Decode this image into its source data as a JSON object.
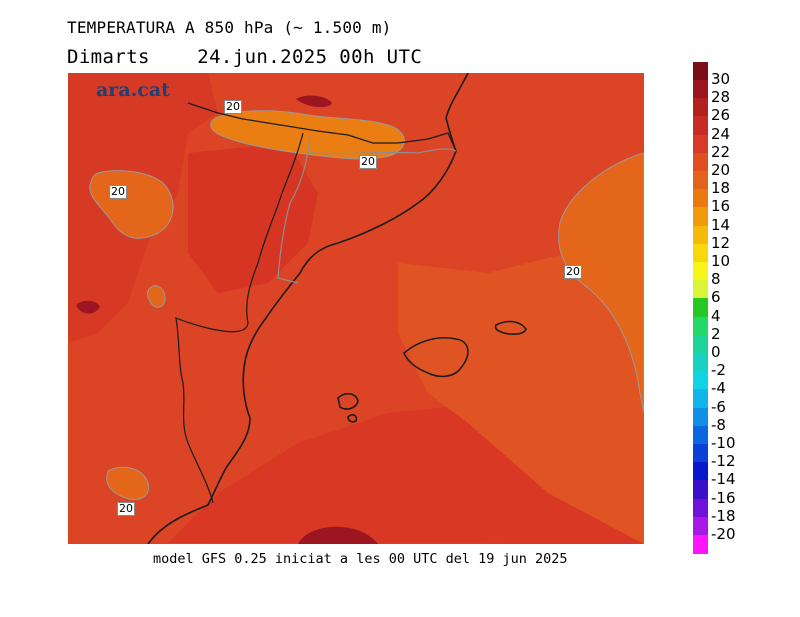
{
  "header": {
    "title": "TEMPERATURA A 850 hPa (~ 1.500 m)",
    "subtitle_day": "Dimarts",
    "subtitle_date": "24.jun.2025 00h UTC"
  },
  "map": {
    "logo_text": "ara.cat",
    "contour_labels": [
      "20",
      "20",
      "20",
      "20",
      "20"
    ]
  },
  "footer": {
    "text": "model GFS 0.25 iniciat a les 00 UTC del 19 jun 2025"
  },
  "legend": {
    "labels": [
      "30",
      "28",
      "26",
      "24",
      "22",
      "20",
      "18",
      "16",
      "14",
      "12",
      "10",
      "8",
      "6",
      "4",
      "2",
      "0",
      "-2",
      "-4",
      "-6",
      "-8",
      "-10",
      "-12",
      "-14",
      "-16",
      "-18",
      "-20"
    ],
    "colors": [
      "#7a0c18",
      "#9b1620",
      "#b3211f",
      "#c72b23",
      "#d83a26",
      "#e04f1f",
      "#e4631a",
      "#e97a10",
      "#f09a0c",
      "#f6bb0a",
      "#f7d80a",
      "#f7f518",
      "#d8f536",
      "#28c824",
      "#22d868",
      "#1ed39a",
      "#18d1c1",
      "#12d3e3",
      "#10b6ea",
      "#0f90e6",
      "#0c66e0",
      "#0a40d8",
      "#0a18cc",
      "#3c10c8",
      "#7012d8",
      "#a818e6",
      "#ff14ff"
    ],
    "bottom_color": "#ff14ff"
  }
}
